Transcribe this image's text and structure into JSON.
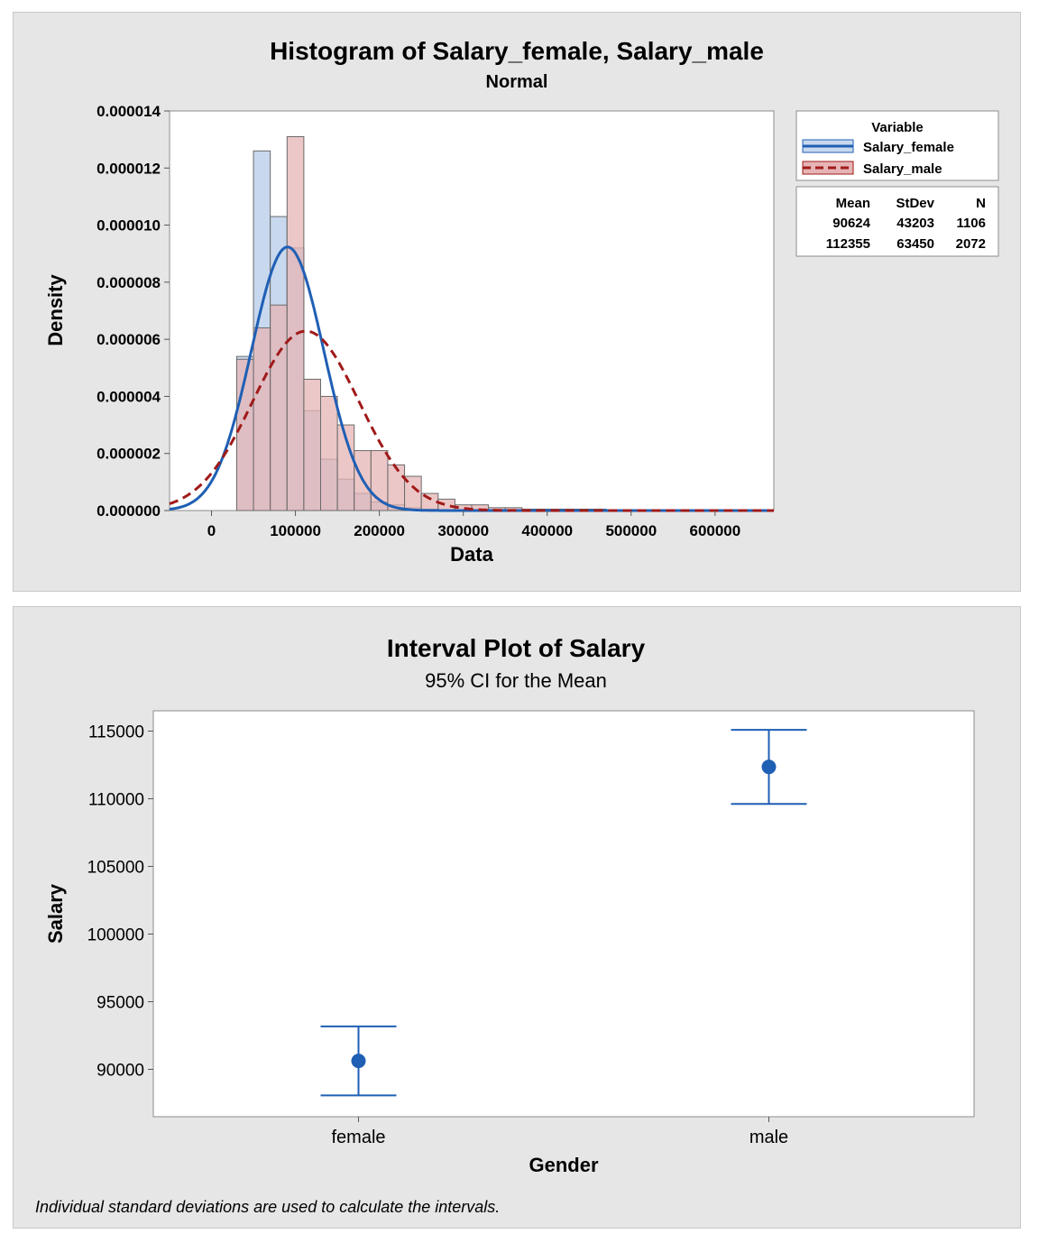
{
  "chart_data": [
    {
      "type": "histogram",
      "title": "Histogram of Salary_female, Salary_male",
      "subtitle": "Normal",
      "xlabel": "Data",
      "ylabel": "Density",
      "xlim": [
        -50000,
        670000
      ],
      "ylim": [
        0,
        1.4e-05
      ],
      "xticks": [
        0,
        100000,
        200000,
        300000,
        400000,
        500000,
        600000
      ],
      "yticks": [
        "0.000000",
        "0.000002",
        "0.000004",
        "0.000006",
        "0.000008",
        "0.000010",
        "0.000012",
        "0.000014"
      ],
      "bin_width": 20000,
      "bin_starts": [
        30000,
        50000,
        70000,
        90000,
        110000,
        130000,
        150000,
        170000,
        190000,
        210000,
        230000,
        250000,
        270000,
        290000,
        310000,
        330000,
        350000,
        370000,
        390000,
        410000,
        430000,
        450000
      ],
      "legend_title": "Variable",
      "legend_position": "right",
      "stats_header": [
        "Mean",
        "StDev",
        "N"
      ],
      "series": [
        {
          "name": "Salary_female",
          "color": "#1f5fb4",
          "fill": "#c8d8ee",
          "line": "solid",
          "mean": 90624,
          "stdev": 43203,
          "n": 1106,
          "density": [
            5.4e-06,
            1.26e-05,
            1.03e-05,
            9.2e-06,
            3.5e-06,
            1.8e-06,
            1.1e-06,
            6e-07,
            3e-07,
            2e-07,
            1e-07,
            5e-08,
            0,
            0,
            0,
            0,
            0,
            0,
            0,
            0,
            0,
            0
          ]
        },
        {
          "name": "Salary_male",
          "color": "#a01a1a",
          "fill": "#e6b4b4",
          "line": "dashed",
          "mean": 112355,
          "stdev": 63450,
          "n": 2072,
          "density": [
            5.3e-06,
            6.4e-06,
            7.2e-06,
            1.31e-05,
            4.6e-06,
            4e-06,
            3e-06,
            2.1e-06,
            2.1e-06,
            1.6e-06,
            1.2e-06,
            6e-07,
            4e-07,
            2e-07,
            2e-07,
            1e-07,
            1e-07,
            5e-08,
            5e-08,
            5e-08,
            5e-08,
            5e-08
          ]
        }
      ]
    },
    {
      "type": "interval",
      "title": "Interval Plot of Salary",
      "subtitle": "95% CI for the Mean",
      "xlabel": "Gender",
      "ylabel": "Salary",
      "ylim": [
        86500,
        116500
      ],
      "yticks": [
        90000,
        95000,
        100000,
        105000,
        110000,
        115000
      ],
      "categories": [
        "female",
        "male"
      ],
      "means": [
        90624,
        112355
      ],
      "lower": [
        88075,
        109620
      ],
      "upper": [
        93172,
        115090
      ],
      "color": "#1f5fb4",
      "footnote": "Individual standard deviations are used to calculate the intervals."
    }
  ]
}
